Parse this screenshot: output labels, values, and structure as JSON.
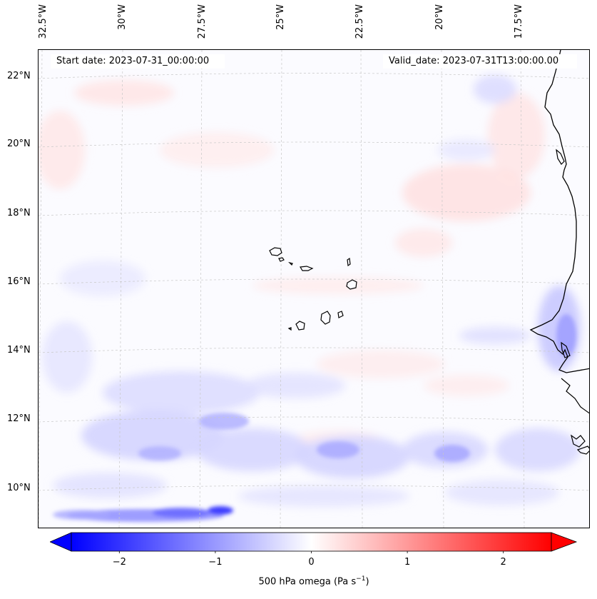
{
  "map": {
    "start_date_text": "Start date: 2023-07-31_00:00:00",
    "valid_date_text": "Valid_date: 2023-07-31T13:00:00.00",
    "longitude_labels": [
      "32.5°W",
      "30°W",
      "27.5°W",
      "25°W",
      "22.5°W",
      "20°W",
      "17.5°W"
    ],
    "latitude_labels": [
      "22°N",
      "20°N",
      "18°N",
      "16°N",
      "14°N",
      "12°N",
      "10°N"
    ],
    "extent": {
      "lon_min": -32.6,
      "lon_max": -15.2,
      "lat_min": 8.9,
      "lat_max": 22.8
    },
    "field": "500 hPa omega",
    "colormap": "bwr"
  },
  "colorbar": {
    "label_main": "500 hPa omega (Pa s",
    "label_exp": "−1",
    "label_close": ")",
    "ticks": [
      "−2",
      "−1",
      "0",
      "1",
      "2"
    ],
    "tick_values": [
      -2,
      -1,
      0,
      1,
      2
    ],
    "range": [
      -2.5,
      2.5
    ],
    "extend": "both",
    "min_color": "#0000ff",
    "mid_color": "#ffffff",
    "max_color": "#ff0000"
  }
}
